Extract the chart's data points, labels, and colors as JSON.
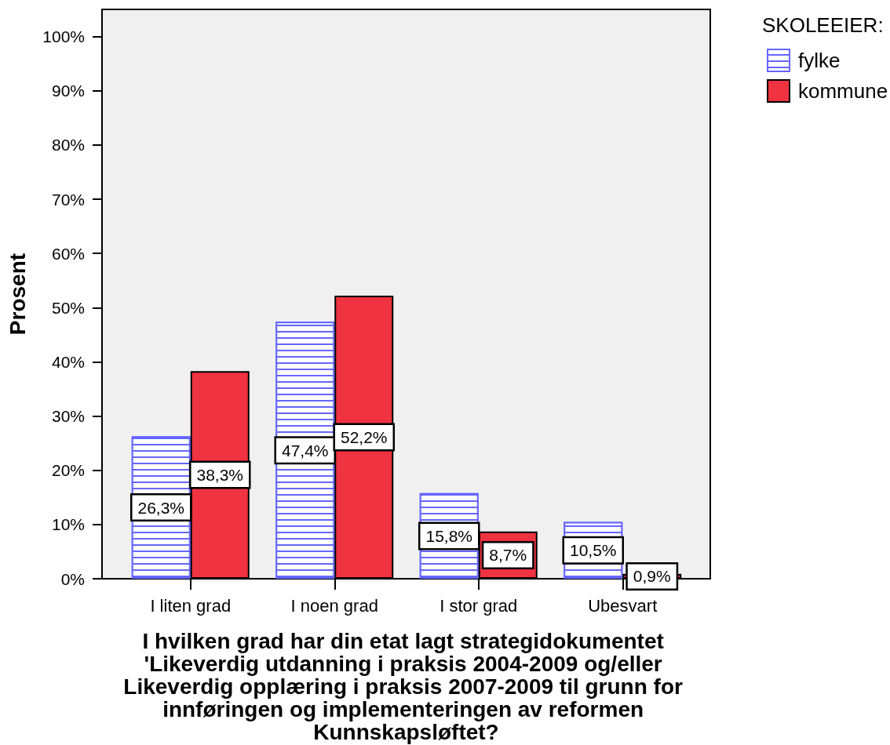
{
  "chart_data": {
    "type": "bar",
    "xlabel": "I hvilken grad har din etat lagt strategidokumentet 'Likeverdig utdanning i praksis 2004-2009 og/eller Likeverdig opplæring i praksis 2007-2009 til grunn for innføringen og implementeringen av reformen Kunnskapsløftet?",
    "ylabel": "Prosent",
    "legend_title": "SKOLEEIER:",
    "categories": [
      "I liten grad",
      "I noen grad",
      "I stor grad",
      "Ubesvart"
    ],
    "series": [
      {
        "name": "fylke",
        "color": "#6666ff",
        "values": [
          26.3,
          47.4,
          15.8,
          10.5
        ],
        "value_labels": [
          "26,3%",
          "47,4%",
          "15,8%",
          "10,5%"
        ]
      },
      {
        "name": "kommune",
        "color": "#ef3340",
        "values": [
          38.3,
          52.2,
          8.7,
          0.9
        ],
        "value_labels": [
          "38,3%",
          "52,2%",
          "8,7%",
          "0,9%"
        ]
      }
    ],
    "ylim": [
      0,
      105
    ],
    "yticks": [
      {
        "value": 0,
        "label": "0%"
      },
      {
        "value": 10,
        "label": "10%"
      },
      {
        "value": 20,
        "label": "20%"
      },
      {
        "value": 30,
        "label": "30%"
      },
      {
        "value": 40,
        "label": "40%"
      },
      {
        "value": 50,
        "label": "50%"
      },
      {
        "value": 60,
        "label": "60%"
      },
      {
        "value": 70,
        "label": "70%"
      },
      {
        "value": 80,
        "label": "80%"
      },
      {
        "value": 90,
        "label": "90%"
      },
      {
        "value": 100,
        "label": "100%"
      }
    ],
    "grid": false,
    "legend": "top right"
  }
}
